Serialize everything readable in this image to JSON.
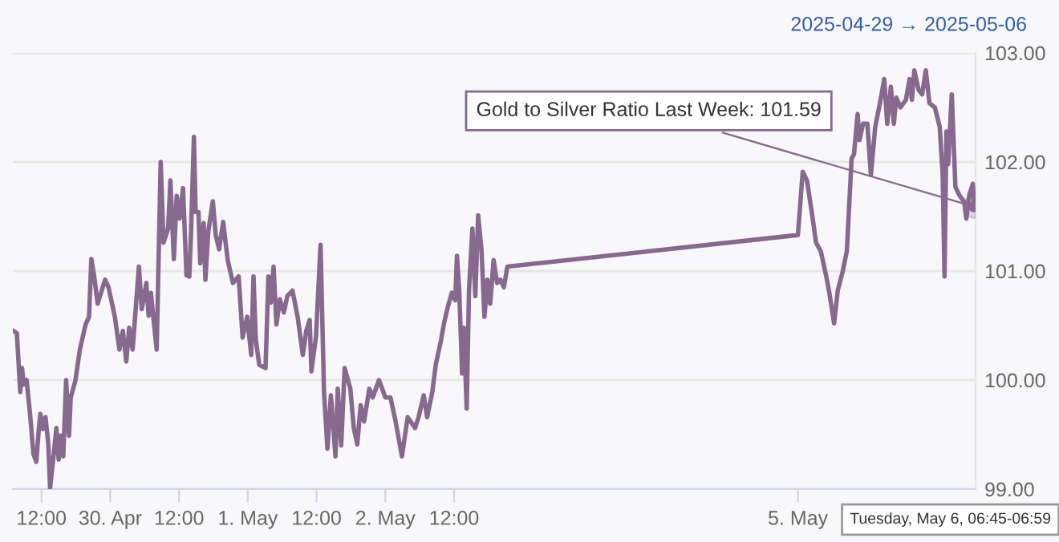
{
  "chart_data": {
    "type": "line",
    "subtitle": "2025-04-29 → 2025-05-06",
    "xlim": [
      "2025-04-29T07:00",
      "2025-05-06T07:00"
    ],
    "ylim": [
      99,
      103
    ],
    "xticks": [
      {
        "value": "2025-04-29T12:00",
        "label": "12:00"
      },
      {
        "value": "2025-04-30",
        "label": "30. Apr"
      },
      {
        "value": "2025-04-30T12:00",
        "label": "12:00"
      },
      {
        "value": "2025-05-01",
        "label": "1. May"
      },
      {
        "value": "2025-05-01T12:00",
        "label": "12:00"
      },
      {
        "value": "2025-05-02",
        "label": "2. May"
      },
      {
        "value": "2025-05-02T12:00",
        "label": "12:00"
      },
      {
        "value": "2025-05-05",
        "label": "5. May"
      }
    ],
    "yticks": [
      {
        "value": 99,
        "label": "99.00"
      },
      {
        "value": 100,
        "label": "100.00"
      },
      {
        "value": 101,
        "label": "101.00"
      },
      {
        "value": 102,
        "label": "102.00"
      },
      {
        "value": 103,
        "label": "103.00"
      }
    ],
    "grid": "y",
    "marker": "none",
    "line_style": "solid",
    "annotations": [
      {
        "text": "Gold to Silver Ratio Last Week: 101.59",
        "x": "2025-05-06T06:45",
        "y": 101.59
      },
      "Tuesday, May 6, 06:45-06:59"
    ],
    "series": [
      {
        "color": "#87698f",
        "x": [
          "2025-04-29T07:06",
          "2025-04-29T07:42",
          "2025-04-29T08:18",
          "2025-04-29T08:36",
          "2025-04-29T08:54",
          "2025-04-29T09:24",
          "2025-04-29T10:00",
          "2025-04-29T10:36",
          "2025-04-29T11:06",
          "2025-04-29T11:30",
          "2025-04-29T11:48",
          "2025-04-29T12:12",
          "2025-04-29T12:42",
          "2025-04-29T13:12",
          "2025-04-29T13:30",
          "2025-04-29T14:00",
          "2025-04-29T14:36",
          "2025-04-29T15:00",
          "2025-04-29T15:18",
          "2025-04-29T15:48",
          "2025-04-29T16:18",
          "2025-04-29T16:48",
          "2025-04-29T17:06",
          "2025-04-29T17:54",
          "2025-04-29T18:42",
          "2025-04-29T19:42",
          "2025-04-29T20:18",
          "2025-04-29T20:42",
          "2025-04-29T21:12",
          "2025-04-29T21:48",
          "2025-04-29T23:06",
          "2025-04-29T23:42",
          "2025-04-30T00:48",
          "2025-04-30T01:36",
          "2025-04-30T02:12",
          "2025-04-30T02:48",
          "2025-04-30T03:18",
          "2025-04-30T03:54",
          "2025-04-30T05:00",
          "2025-04-30T05:30",
          "2025-04-30T06:18",
          "2025-04-30T06:42",
          "2025-04-30T07:06",
          "2025-04-30T07:30",
          "2025-04-30T08:06",
          "2025-04-30T08:48",
          "2025-04-30T09:18",
          "2025-04-30T10:06",
          "2025-04-30T10:30",
          "2025-04-30T11:06",
          "2025-04-30T11:36",
          "2025-04-30T12:06",
          "2025-04-30T12:42",
          "2025-04-30T13:18",
          "2025-04-30T13:48",
          "2025-04-30T14:06",
          "2025-04-30T14:36",
          "2025-04-30T14:54",
          "2025-04-30T15:24",
          "2025-04-30T15:42",
          "2025-04-30T16:18",
          "2025-04-30T16:36",
          "2025-04-30T17:06",
          "2025-04-30T17:54",
          "2025-04-30T18:24",
          "2025-04-30T19:00",
          "2025-04-30T19:42",
          "2025-04-30T20:30",
          "2025-04-30T21:24",
          "2025-04-30T22:24",
          "2025-04-30T23:06",
          "2025-04-30T23:54",
          "2025-05-01T00:36",
          "2025-05-01T01:00",
          "2025-05-01T01:24",
          "2025-05-01T02:00",
          "2025-05-01T03:06",
          "2025-05-01T03:36",
          "2025-05-01T04:00",
          "2025-05-01T04:30",
          "2025-05-01T05:00",
          "2025-05-01T05:36",
          "2025-05-01T06:18",
          "2025-05-01T06:54",
          "2025-05-01T07:48",
          "2025-05-01T08:42",
          "2025-05-01T09:36",
          "2025-05-01T10:12",
          "2025-05-01T10:48",
          "2025-05-01T11:06",
          "2025-05-01T11:54",
          "2025-05-01T12:42",
          "2025-05-01T13:18",
          "2025-05-01T13:54",
          "2025-05-01T14:30",
          "2025-05-01T15:18",
          "2025-05-01T15:42",
          "2025-05-01T16:18",
          "2025-05-01T16:54",
          "2025-05-01T17:54",
          "2025-05-01T18:30",
          "2025-05-01T19:06",
          "2025-05-01T19:42",
          "2025-05-01T20:18",
          "2025-05-01T21:12",
          "2025-05-01T21:48",
          "2025-05-01T22:54",
          "2025-05-02T00:00",
          "2025-05-02T00:54",
          "2025-05-02T01:48",
          "2025-05-02T02:54",
          "2025-05-02T03:54",
          "2025-05-02T05:12",
          "2025-05-02T05:48",
          "2025-05-02T06:42",
          "2025-05-02T07:18",
          "2025-05-02T08:12",
          "2025-05-02T08:48",
          "2025-05-02T09:42",
          "2025-05-02T10:12",
          "2025-05-02T10:54",
          "2025-05-02T11:36",
          "2025-05-02T12:12",
          "2025-05-02T12:30",
          "2025-05-02T12:54",
          "2025-05-02T13:24",
          "2025-05-02T13:42",
          "2025-05-02T14:12",
          "2025-05-02T14:36",
          "2025-05-02T15:12",
          "2025-05-02T15:42",
          "2025-05-02T16:12",
          "2025-05-02T16:48",
          "2025-05-02T17:18",
          "2025-05-02T17:48",
          "2025-05-02T18:18",
          "2025-05-02T18:54",
          "2025-05-02T19:30",
          "2025-05-02T20:06",
          "2025-05-02T20:42",
          "2025-05-02T21:18",
          "2025-05-05T00:00",
          "2025-05-05T00:50",
          "2025-05-05T01:35",
          "2025-05-05T02:25",
          "2025-05-05T03:10",
          "2025-05-05T04:00",
          "2025-05-05T04:57",
          "2025-05-05T05:29",
          "2025-05-05T06:19",
          "2025-05-05T06:57",
          "2025-05-05T07:47",
          "2025-05-05T08:32",
          "2025-05-05T09:22",
          "2025-05-05T09:47",
          "2025-05-05T10:25",
          "2025-05-05T10:44",
          "2025-05-05T11:22",
          "2025-05-05T12:07",
          "2025-05-05T12:44",
          "2025-05-05T13:29",
          "2025-05-05T14:19",
          "2025-05-05T15:04",
          "2025-05-05T15:35",
          "2025-05-05T16:13",
          "2025-05-05T16:44",
          "2025-05-05T17:10",
          "2025-05-05T17:54",
          "2025-05-05T18:51",
          "2025-05-05T19:29",
          "2025-05-05T19:54",
          "2025-05-05T20:19",
          "2025-05-05T21:04",
          "2025-05-05T21:41",
          "2025-05-05T22:19",
          "2025-05-05T22:57",
          "2025-05-05T23:54",
          "2025-05-06T00:45",
          "2025-05-06T01:16",
          "2025-05-06T01:35",
          "2025-05-06T01:55",
          "2025-05-06T02:13",
          "2025-05-06T02:51",
          "2025-05-06T03:29",
          "2025-05-06T04:07",
          "2025-05-06T05:04",
          "2025-05-06T05:23",
          "2025-05-06T05:55",
          "2025-05-06T06:32",
          "2025-05-06T06:45"
        ],
        "values": [
          100.45,
          100.43,
          99.89,
          100.11,
          99.96,
          100.0,
          99.69,
          99.32,
          99.25,
          99.53,
          99.69,
          99.55,
          99.66,
          99.41,
          99.01,
          99.25,
          99.56,
          99.27,
          99.49,
          99.3,
          100.0,
          99.49,
          99.84,
          99.99,
          100.28,
          100.51,
          100.58,
          101.11,
          100.95,
          100.7,
          100.92,
          100.85,
          100.58,
          100.28,
          100.45,
          100.17,
          100.48,
          100.28,
          101.04,
          100.65,
          100.89,
          100.59,
          100.8,
          100.58,
          100.28,
          102.0,
          101.26,
          101.39,
          101.83,
          101.11,
          101.69,
          101.48,
          101.76,
          100.96,
          100.95,
          101.36,
          102.23,
          101.54,
          101.54,
          101.07,
          101.44,
          100.92,
          101.36,
          101.64,
          101.33,
          101.2,
          101.45,
          101.1,
          100.89,
          100.95,
          100.39,
          100.58,
          100.23,
          100.95,
          100.37,
          100.14,
          100.11,
          100.95,
          100.71,
          101.04,
          100.51,
          100.74,
          100.62,
          100.77,
          100.82,
          100.58,
          100.23,
          100.45,
          100.55,
          100.08,
          100.4,
          101.24,
          99.89,
          99.37,
          99.86,
          99.3,
          99.92,
          99.4,
          100.11,
          99.92,
          99.56,
          99.41,
          99.77,
          99.62,
          99.92,
          99.84,
          100.0,
          99.84,
          99.84,
          99.62,
          99.3,
          99.66,
          99.56,
          99.66,
          99.86,
          99.66,
          99.89,
          100.14,
          100.36,
          100.51,
          100.67,
          100.8,
          100.73,
          101.14,
          100.82,
          100.06,
          100.48,
          99.74,
          100.82,
          101.39,
          100.77,
          101.51,
          101.18,
          100.58,
          100.92,
          100.7,
          101.1,
          100.89,
          100.92,
          100.85,
          101.04,
          101.33,
          101.91,
          101.83,
          101.54,
          101.26,
          101.18,
          100.95,
          100.8,
          100.52,
          100.82,
          100.99,
          101.18,
          102.03,
          102.07,
          102.44,
          102.2,
          102.35,
          102.35,
          101.88,
          102.32,
          102.54,
          102.76,
          102.35,
          102.69,
          102.35,
          102.59,
          102.5,
          102.57,
          102.76,
          102.57,
          102.84,
          102.66,
          102.62,
          102.84,
          102.54,
          102.5,
          102.32,
          101.88,
          100.95,
          102.28,
          101.98,
          102.62,
          101.77,
          101.7,
          101.63,
          101.48,
          101.7,
          101.8,
          101.59
        ]
      }
    ]
  }
}
